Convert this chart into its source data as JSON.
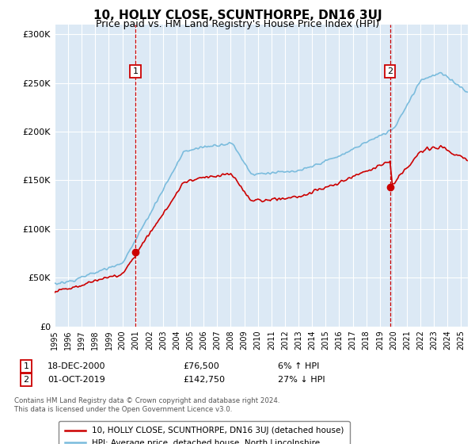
{
  "title": "10, HOLLY CLOSE, SCUNTHORPE, DN16 3UJ",
  "subtitle": "Price paid vs. HM Land Registry's House Price Index (HPI)",
  "title_fontsize": 11,
  "subtitle_fontsize": 9,
  "background_color": "#FFFFFF",
  "plot_bg_color": "#DCE9F5",
  "grid_color": "#FFFFFF",
  "ylabel_values": [
    "£0",
    "£50K",
    "£100K",
    "£150K",
    "£200K",
    "£250K",
    "£300K"
  ],
  "ytick_values": [
    0,
    50000,
    100000,
    150000,
    200000,
    250000,
    300000
  ],
  "ylim": [
    0,
    310000
  ],
  "xlim_start": 1995.0,
  "xlim_end": 2025.5,
  "xtick_years": [
    1995,
    1996,
    1997,
    1998,
    1999,
    2000,
    2001,
    2002,
    2003,
    2004,
    2005,
    2006,
    2007,
    2008,
    2009,
    2010,
    2011,
    2012,
    2013,
    2014,
    2015,
    2016,
    2017,
    2018,
    2019,
    2020,
    2021,
    2022,
    2023,
    2024,
    2025
  ],
  "sale1_x": 2000.96,
  "sale1_y": 76500,
  "sale1_label": "1",
  "sale2_x": 2019.75,
  "sale2_y": 142750,
  "sale2_label": "2",
  "vline_color": "#CC0000",
  "dot_color": "#CC0000",
  "legend_line1_label": "10, HOLLY CLOSE, SCUNTHORPE, DN16 3UJ (detached house)",
  "legend_line2_label": "HPI: Average price, detached house, North Lincolnshire",
  "info1_num": "1",
  "info1_date": "18-DEC-2000",
  "info1_price": "£76,500",
  "info1_hpi": "6% ↑ HPI",
  "info2_num": "2",
  "info2_date": "01-OCT-2019",
  "info2_price": "£142,750",
  "info2_hpi": "27% ↓ HPI",
  "footer": "Contains HM Land Registry data © Crown copyright and database right 2024.\nThis data is licensed under the Open Government Licence v3.0.",
  "hpi_color": "#7BBCDD",
  "price_color": "#CC0000",
  "hpi_linewidth": 1.2,
  "price_linewidth": 1.2
}
